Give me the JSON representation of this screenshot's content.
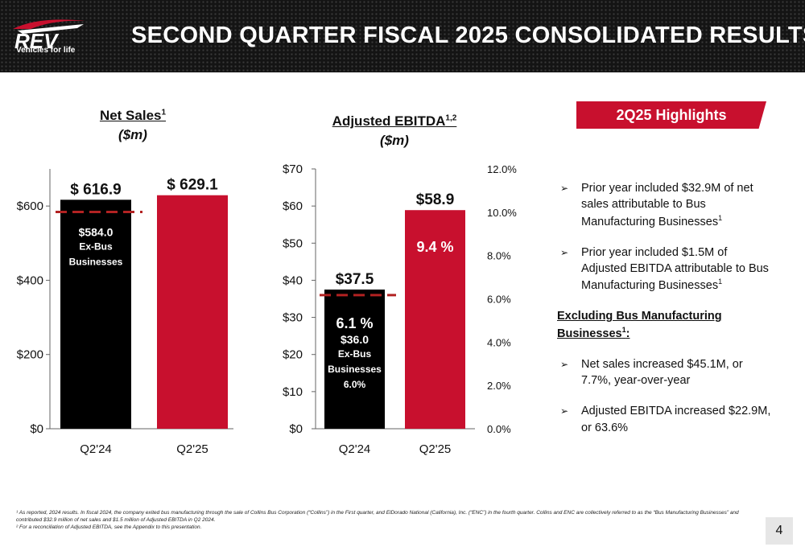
{
  "header": {
    "title": "SECOND QUARTER FISCAL 2025 CONSOLIDATED RESULTS",
    "logo_text": "REV",
    "logo_tagline": "Vehicles for life"
  },
  "colors": {
    "black_bar": "#000000",
    "red_bar": "#c8102e",
    "dash": "#b22222"
  },
  "chart_data": [
    {
      "type": "bar",
      "title": "Net Sales",
      "title_sup": "1",
      "unit": "($m)",
      "categories": [
        "Q2'24",
        "Q2'25"
      ],
      "values": [
        616.9,
        629.1
      ],
      "value_labels": [
        "$ 616.9",
        "$ 629.1"
      ],
      "colors": [
        "#000000",
        "#c8102e"
      ],
      "ylim": [
        0,
        700
      ],
      "y_ticks": [
        0,
        200,
        400,
        600
      ],
      "y_tick_labels": [
        "$0",
        "$200",
        "$400",
        "$600"
      ],
      "reference_line": {
        "value": 584.0,
        "style": "dashed"
      },
      "inner_annotation": [
        "$584.0",
        "Ex-Bus",
        "Businesses"
      ],
      "grid": false
    },
    {
      "type": "bar",
      "title": "Adjusted EBITDA",
      "title_sup": "1,2",
      "unit": "($m)",
      "categories": [
        "Q2'24",
        "Q2'25"
      ],
      "values": [
        37.5,
        58.9
      ],
      "value_labels": [
        "$37.5",
        "$58.9"
      ],
      "margin_labels": [
        "6.1 %",
        "9.4 %"
      ],
      "colors": [
        "#000000",
        "#c8102e"
      ],
      "ylim": [
        0,
        70
      ],
      "y_ticks": [
        0,
        10,
        20,
        30,
        40,
        50,
        60,
        70
      ],
      "y_tick_labels": [
        "$0",
        "$10",
        "$20",
        "$30",
        "$40",
        "$50",
        "$60",
        "$70"
      ],
      "y2lim": [
        0,
        12
      ],
      "y2_ticks": [
        0,
        2,
        4,
        6,
        8,
        10,
        12
      ],
      "y2_tick_labels": [
        "0.0%",
        "2.0%",
        "4.0%",
        "6.0%",
        "8.0%",
        "10.0%",
        "12.0%"
      ],
      "reference_line": {
        "value": 36.0,
        "style": "dashed"
      },
      "inner_annotation": [
        "$36.0",
        "Ex-Bus",
        "Businesses",
        "6.0%"
      ],
      "grid": false
    }
  ],
  "highlights": {
    "banner": "2Q25 Highlights",
    "items_top": [
      {
        "text": "Prior year included $32.9M of net sales attributable to Bus Manufacturing Businesses",
        "sup": "1"
      },
      {
        "text": "Prior year included $1.5M of Adjusted EBITDA attributable to Bus Manufacturing Businesses",
        "sup": "1"
      }
    ],
    "subheading": "Excluding Bus Manufacturing Businesses",
    "subheading_sup": "1",
    "subheading_suffix": ":",
    "items_bottom": [
      {
        "text": "Net sales increased $45.1M, or 7.7%, year-over-year"
      },
      {
        "text": "Adjusted EBITDA increased $22.9M, or 63.6%"
      }
    ]
  },
  "footnotes": [
    "¹ As reported, 2024 results. In fiscal 2024, the company exited bus manufacturing through the sale of Collins Bus Corporation (“Collins”) in the First quarter, and ElDorado National (California), Inc. (“ENC”) in the fourth quarter. Collins and ENC are collectively referred to as the “Bus Manufacturing Businesses” and contributed $32.9 million of net sales and $1.5 million of Adjusted EBITDA in Q2 2024.",
    "² For a reconciliation of Adjusted EBITDA, see the Appendix to this presentation."
  ],
  "page_number": "4"
}
